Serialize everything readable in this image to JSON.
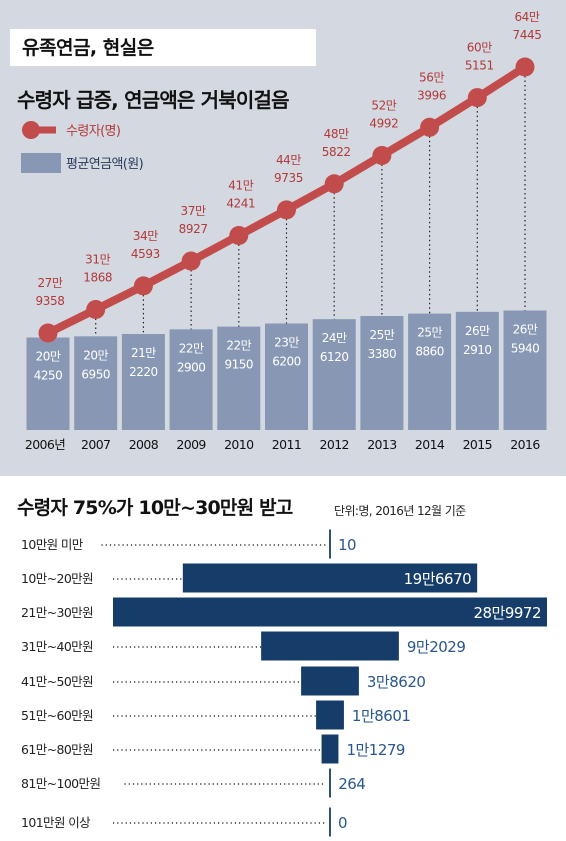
{
  "header": {
    "title": "유족연금, 현실은"
  },
  "colors": {
    "line": "#c24b4b",
    "line_text": "#b23a3a",
    "bar": "#8797b4",
    "hbar": "#163d6a",
    "hbar_text_out": "#2a578d"
  },
  "chart_data": [
    {
      "type": "bar",
      "title": "수령자 급증, 연금액은 거북이걸음",
      "categories": [
        "2006년",
        "2007",
        "2008",
        "2009",
        "2010",
        "2011",
        "2012",
        "2013",
        "2014",
        "2015",
        "2016"
      ],
      "legend": [
        {
          "name": "수령자(명)",
          "kind": "line"
        },
        {
          "name": "평균연금액(원)",
          "kind": "bar"
        }
      ],
      "series": [
        {
          "name": "평균연금액(원)",
          "type": "bar",
          "values": [
            204250,
            206950,
            212220,
            222900,
            229150,
            236200,
            246120,
            253380,
            258860,
            262910,
            265940
          ],
          "labels": [
            [
              "20만",
              "4250"
            ],
            [
              "20만",
              "6950"
            ],
            [
              "21만",
              "2220"
            ],
            [
              "22만",
              "2900"
            ],
            [
              "22만",
              "9150"
            ],
            [
              "23만",
              "6200"
            ],
            [
              "24만",
              "6120"
            ],
            [
              "25만",
              "3380"
            ],
            [
              "25만",
              "8860"
            ],
            [
              "26만",
              "2910"
            ],
            [
              "26만",
              "5940"
            ]
          ]
        },
        {
          "name": "수령자(명)",
          "type": "line",
          "values": [
            279358,
            311868,
            344593,
            378927,
            414241,
            449735,
            485822,
            524992,
            563996,
            605151,
            647445
          ],
          "labels": [
            [
              "27만",
              "9358"
            ],
            [
              "31만",
              "1868"
            ],
            [
              "34만",
              "4593"
            ],
            [
              "37만",
              "8927"
            ],
            [
              "41만",
              "4241"
            ],
            [
              "44만",
              "9735"
            ],
            [
              "48만",
              "5822"
            ],
            [
              "52만",
              "4992"
            ],
            [
              "56만",
              "3996"
            ],
            [
              "60만",
              "5151"
            ],
            [
              "64만",
              "7445"
            ]
          ]
        }
      ]
    },
    {
      "type": "bar",
      "orientation": "horizontal",
      "title": "수령자 75%가 10만~30만원 받고",
      "note": "단위:명, 2016년 12월 기준",
      "categories": [
        "10만원 미만",
        "10만~20만원",
        "21만~30만원",
        "31만~40만원",
        "41만~50만원",
        "51만~60만원",
        "61만~80만원",
        "81만~100만원",
        "101만원 이상"
      ],
      "values": [
        10,
        196670,
        289972,
        92029,
        38620,
        18601,
        11279,
        264,
        0
      ],
      "labels": [
        "10",
        "19만6670",
        "28만9972",
        "9만2029",
        "3만8620",
        "1만8601",
        "1만1279",
        "264",
        "0"
      ]
    }
  ]
}
